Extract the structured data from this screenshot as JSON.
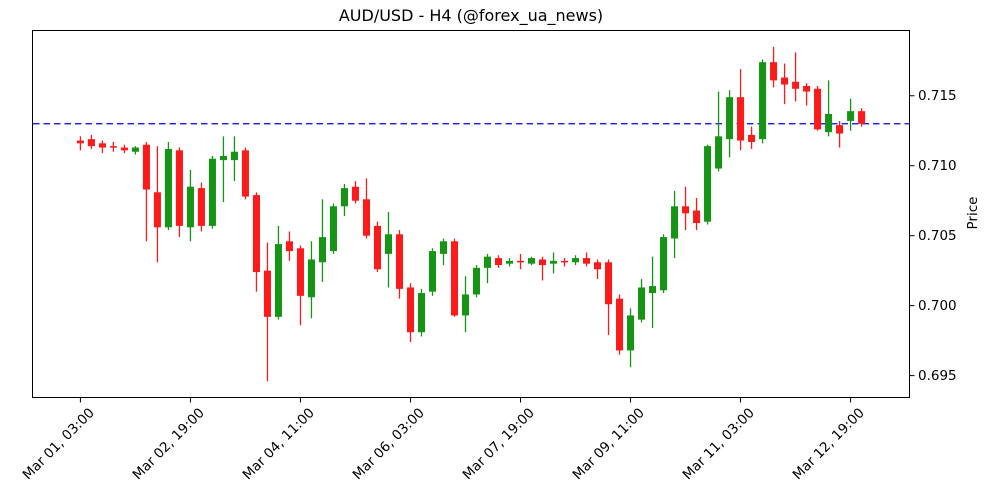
{
  "figure": {
    "background": "#ffffff"
  },
  "chart_data": {
    "type": "candlestick",
    "title": "AUD/USD - H4 (@forex_ua_news)",
    "symbol": "AUD/USD",
    "timeframe": "H4",
    "ylabel": "Price",
    "ylabel_side": "right",
    "grid": false,
    "legend": "none",
    "up_color": "#169416",
    "down_color": "#fb1b1b",
    "axis_color": "#000000",
    "threshold_line": {
      "value": 0.713,
      "color": "#0000ff",
      "style": "dashed"
    },
    "ylim": [
      0.6934,
      0.7197
    ],
    "xlim": [
      -4.4,
      75.4
    ],
    "yticks": [
      0.695,
      0.7,
      0.705,
      0.71,
      0.715
    ],
    "xticks": [
      {
        "index": 0,
        "label": "Mar 01, 03:00"
      },
      {
        "index": 10,
        "label": "Mar 02, 19:00"
      },
      {
        "index": 20,
        "label": "Mar 04, 11:00"
      },
      {
        "index": 30,
        "label": "Mar 06, 03:00"
      },
      {
        "index": 40,
        "label": "Mar 07, 19:00"
      },
      {
        "index": 50,
        "label": "Mar 09, 11:00"
      },
      {
        "index": 60,
        "label": "Mar 11, 03:00"
      },
      {
        "index": 70,
        "label": "Mar 12, 19:00"
      }
    ],
    "ohlc": [
      [
        0.7118,
        0.7121,
        0.7111,
        0.7116
      ],
      [
        0.7119,
        0.7122,
        0.7112,
        0.7114
      ],
      [
        0.7116,
        0.7118,
        0.7109,
        0.7113
      ],
      [
        0.7114,
        0.7117,
        0.711,
        0.7113
      ],
      [
        0.7113,
        0.7115,
        0.7109,
        0.7111
      ],
      [
        0.711,
        0.7114,
        0.7108,
        0.7113
      ],
      [
        0.7115,
        0.7117,
        0.7046,
        0.7083
      ],
      [
        0.7081,
        0.7114,
        0.7031,
        0.7056
      ],
      [
        0.7056,
        0.7117,
        0.7054,
        0.7112
      ],
      [
        0.7111,
        0.7113,
        0.7049,
        0.7057
      ],
      [
        0.7056,
        0.7097,
        0.7046,
        0.7085
      ],
      [
        0.7084,
        0.7088,
        0.7053,
        0.7057
      ],
      [
        0.7057,
        0.7107,
        0.7055,
        0.7105
      ],
      [
        0.7104,
        0.7121,
        0.7074,
        0.7107
      ],
      [
        0.7104,
        0.7121,
        0.7089,
        0.711
      ],
      [
        0.7111,
        0.7113,
        0.7076,
        0.7078
      ],
      [
        0.7079,
        0.7081,
        0.701,
        0.7024
      ],
      [
        0.7025,
        0.7045,
        0.6946,
        0.6992
      ],
      [
        0.6992,
        0.7057,
        0.699,
        0.7044
      ],
      [
        0.7046,
        0.7053,
        0.7032,
        0.7039
      ],
      [
        0.7041,
        0.7043,
        0.6986,
        0.7007
      ],
      [
        0.7006,
        0.7046,
        0.6991,
        0.7033
      ],
      [
        0.7031,
        0.7076,
        0.7017,
        0.7049
      ],
      [
        0.7039,
        0.7073,
        0.7037,
        0.7071
      ],
      [
        0.7071,
        0.7087,
        0.7064,
        0.7084
      ],
      [
        0.7085,
        0.7089,
        0.7073,
        0.7075
      ],
      [
        0.7076,
        0.7091,
        0.7048,
        0.705
      ],
      [
        0.7057,
        0.706,
        0.7024,
        0.7026
      ],
      [
        0.7037,
        0.7067,
        0.7013,
        0.7051
      ],
      [
        0.7051,
        0.7054,
        0.7005,
        0.7012
      ],
      [
        0.7013,
        0.7016,
        0.6974,
        0.6981
      ],
      [
        0.6981,
        0.7012,
        0.6978,
        0.7009
      ],
      [
        0.701,
        0.7041,
        0.7007,
        0.7039
      ],
      [
        0.7037,
        0.7048,
        0.7029,
        0.7046
      ],
      [
        0.7046,
        0.7048,
        0.6992,
        0.6993
      ],
      [
        0.6993,
        0.7021,
        0.6981,
        0.7008
      ],
      [
        0.7008,
        0.7029,
        0.7006,
        0.7027
      ],
      [
        0.7027,
        0.7037,
        0.7016,
        0.7035
      ],
      [
        0.7034,
        0.7036,
        0.7027,
        0.7029
      ],
      [
        0.703,
        0.7034,
        0.7028,
        0.7032
      ],
      [
        0.7032,
        0.7037,
        0.7026,
        0.7031
      ],
      [
        0.703,
        0.7035,
        0.7029,
        0.7034
      ],
      [
        0.7033,
        0.7035,
        0.7018,
        0.7029
      ],
      [
        0.703,
        0.7038,
        0.7023,
        0.7032
      ],
      [
        0.7032,
        0.7034,
        0.7028,
        0.7031
      ],
      [
        0.7031,
        0.7036,
        0.7029,
        0.7034
      ],
      [
        0.7034,
        0.7038,
        0.7028,
        0.703
      ],
      [
        0.7031,
        0.7033,
        0.7019,
        0.7026
      ],
      [
        0.7031,
        0.7033,
        0.6979,
        0.7001
      ],
      [
        0.7005,
        0.7008,
        0.6965,
        0.6968
      ],
      [
        0.6968,
        0.6998,
        0.6956,
        0.6993
      ],
      [
        0.699,
        0.7019,
        0.6988,
        0.7013
      ],
      [
        0.7009,
        0.7035,
        0.6984,
        0.7014
      ],
      [
        0.7011,
        0.7051,
        0.7009,
        0.7049
      ],
      [
        0.7048,
        0.7082,
        0.7034,
        0.7071
      ],
      [
        0.7071,
        0.7085,
        0.7054,
        0.7066
      ],
      [
        0.7068,
        0.7077,
        0.7054,
        0.7059
      ],
      [
        0.706,
        0.7115,
        0.7058,
        0.7114
      ],
      [
        0.7098,
        0.7153,
        0.7096,
        0.7121
      ],
      [
        0.7119,
        0.7154,
        0.7106,
        0.7149
      ],
      [
        0.7149,
        0.7169,
        0.7111,
        0.7118
      ],
      [
        0.7122,
        0.7128,
        0.7112,
        0.7117
      ],
      [
        0.7119,
        0.7176,
        0.7116,
        0.7174
      ],
      [
        0.7174,
        0.7185,
        0.7156,
        0.7161
      ],
      [
        0.7163,
        0.7173,
        0.7144,
        0.7158
      ],
      [
        0.716,
        0.7181,
        0.7146,
        0.7155
      ],
      [
        0.7157,
        0.7159,
        0.7143,
        0.7153
      ],
      [
        0.7155,
        0.7157,
        0.7125,
        0.7126
      ],
      [
        0.7124,
        0.7161,
        0.7121,
        0.7137
      ],
      [
        0.7129,
        0.7132,
        0.7113,
        0.7123
      ],
      [
        0.7132,
        0.7148,
        0.7125,
        0.7139
      ],
      [
        0.7139,
        0.7141,
        0.7128,
        0.713
      ]
    ]
  }
}
